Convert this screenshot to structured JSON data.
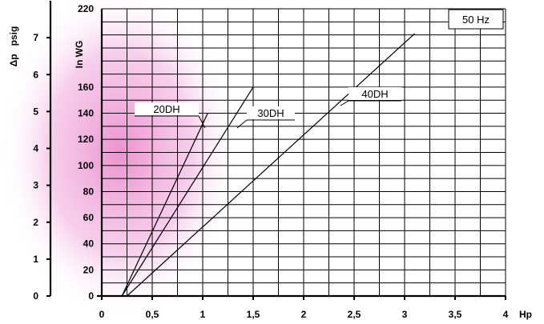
{
  "chart_data": {
    "type": "line",
    "badge": "50 Hz",
    "x_axis": {
      "label": "Hp",
      "range": [
        0,
        4
      ],
      "ticks": [
        {
          "value": 0,
          "label": "0"
        },
        {
          "value": 0.5,
          "label": "0,5"
        },
        {
          "value": 1,
          "label": "1"
        },
        {
          "value": 1.5,
          "label": "1,5"
        },
        {
          "value": 2,
          "label": "2"
        },
        {
          "value": 2.5,
          "label": "2,5"
        },
        {
          "value": 3,
          "label": "3"
        },
        {
          "value": 3.5,
          "label": "3,5"
        },
        {
          "value": 4,
          "label": "4"
        }
      ]
    },
    "y_axis_inwg": {
      "label": "In WG",
      "range": [
        0,
        220
      ],
      "ticks": [
        {
          "value": 0,
          "label": "0"
        },
        {
          "value": 20,
          "label": "20"
        },
        {
          "value": 40,
          "label": "40"
        },
        {
          "value": 60,
          "label": "60"
        },
        {
          "value": 80,
          "label": "80"
        },
        {
          "value": 100,
          "label": "100"
        },
        {
          "value": 120,
          "label": "120"
        },
        {
          "value": 140,
          "label": "140"
        },
        {
          "value": 160,
          "label": "160"
        },
        {
          "value": 220,
          "label": "220"
        }
      ]
    },
    "y_axis_psig": {
      "label": "Δp   psig",
      "range": [
        0,
        8
      ],
      "ticks": [
        {
          "value": 0,
          "label": "0"
        },
        {
          "value": 1,
          "label": "1"
        },
        {
          "value": 2,
          "label": "2"
        },
        {
          "value": 3,
          "label": "3"
        },
        {
          "value": 4,
          "label": "4"
        },
        {
          "value": 5,
          "label": "5"
        },
        {
          "value": 6,
          "label": "6"
        },
        {
          "value": 7,
          "label": "7"
        }
      ]
    },
    "grid": true,
    "series": [
      {
        "name": "20DH",
        "points": [
          [
            0.2,
            0
          ],
          [
            1.05,
            140
          ]
        ]
      },
      {
        "name": "30DH",
        "points": [
          [
            0.2,
            0
          ],
          [
            1.5,
            160
          ]
        ]
      },
      {
        "name": "40DH",
        "points": [
          [
            0.25,
            0
          ],
          [
            3.1,
            201
          ]
        ]
      }
    ]
  }
}
